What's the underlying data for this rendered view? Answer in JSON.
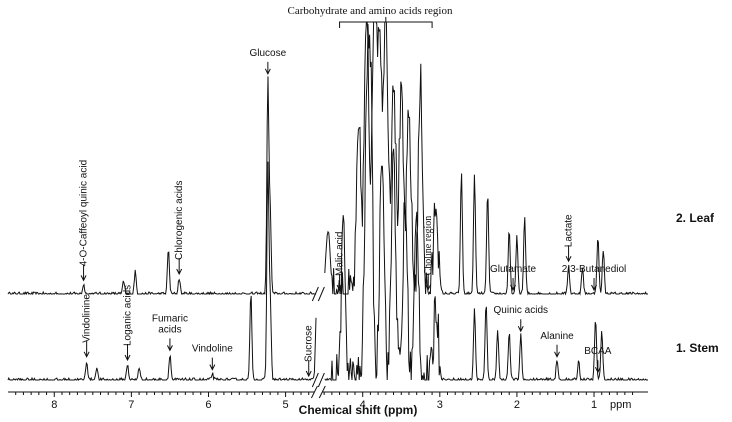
{
  "chart_data": {
    "type": "line",
    "title": "",
    "xlabel": "Chemical shift (ppm)",
    "x_unit": "ppm",
    "xlim": [
      8.6,
      0.3
    ],
    "x_reversed": true,
    "ticks": [
      8,
      7,
      6,
      5,
      4,
      3,
      2,
      1
    ],
    "region_label": "Carbohydrate and amino acids region",
    "series": [
      {
        "name": "2. Leaf",
        "peaks": [
          {
            "x": 7.62,
            "h": 0.3
          },
          {
            "x": 7.1,
            "h": 0.4
          },
          {
            "x": 6.95,
            "h": 0.7
          },
          {
            "x": 6.52,
            "h": 1.4
          },
          {
            "x": 6.38,
            "h": 0.5
          },
          {
            "x": 5.23,
            "h": 6.6
          },
          {
            "x": 5.2,
            "h": 2.5
          },
          {
            "x": 4.45,
            "h": 2.0
          },
          {
            "x": 4.05,
            "h": 5.0
          },
          {
            "x": 3.95,
            "h": 9.0
          },
          {
            "x": 3.85,
            "h": 9.5
          },
          {
            "x": 3.78,
            "h": 8.0
          },
          {
            "x": 3.7,
            "h": 9.2
          },
          {
            "x": 3.6,
            "h": 7.0
          },
          {
            "x": 3.5,
            "h": 6.0
          },
          {
            "x": 3.4,
            "h": 5.5
          },
          {
            "x": 3.25,
            "h": 6.5
          },
          {
            "x": 3.05,
            "h": 3.0
          },
          {
            "x": 2.72,
            "h": 3.8
          },
          {
            "x": 2.55,
            "h": 3.7
          },
          {
            "x": 2.38,
            "h": 3.2
          },
          {
            "x": 2.1,
            "h": 2.0
          },
          {
            "x": 2.0,
            "h": 1.8
          },
          {
            "x": 1.9,
            "h": 2.4
          },
          {
            "x": 1.33,
            "h": 0.9
          },
          {
            "x": 1.15,
            "h": 0.8
          },
          {
            "x": 0.95,
            "h": 1.8
          },
          {
            "x": 0.88,
            "h": 1.4
          }
        ],
        "annotations": [
          {
            "text": "4-O-Caffeoyl quinic acid",
            "x": 7.62,
            "vertical": true,
            "serif": false
          },
          {
            "text": "Chlorogenic acids",
            "x": 6.38,
            "vertical": true,
            "serif": false
          },
          {
            "text": "Glucose",
            "x": 5.23,
            "vertical": false,
            "serif": false
          },
          {
            "text": "Malic acid",
            "x": 4.3,
            "vertical": true,
            "serif": false
          },
          {
            "text": "Choline region",
            "x": 3.15,
            "vertical": true,
            "serif": true
          },
          {
            "text": "Glutamate",
            "x": 2.05,
            "vertical": false,
            "serif": false
          },
          {
            "text": "Lactate",
            "x": 1.33,
            "vertical": true,
            "serif": false
          },
          {
            "text": "2,3-Butanediol",
            "x": 1.0,
            "vertical": false,
            "serif": false
          }
        ]
      },
      {
        "name": "1. Stem",
        "peaks": [
          {
            "x": 7.58,
            "h": 0.6
          },
          {
            "x": 7.45,
            "h": 0.4
          },
          {
            "x": 7.05,
            "h": 0.5
          },
          {
            "x": 6.9,
            "h": 0.4
          },
          {
            "x": 6.5,
            "h": 0.8
          },
          {
            "x": 5.95,
            "h": 0.2
          },
          {
            "x": 5.45,
            "h": 2.7
          },
          {
            "x": 5.23,
            "h": 6.7
          },
          {
            "x": 5.2,
            "h": 2.5
          },
          {
            "x": 4.6,
            "h": 2.2
          },
          {
            "x": 4.25,
            "h": 4.5
          },
          {
            "x": 3.95,
            "h": 7.0
          },
          {
            "x": 3.9,
            "h": 9.0
          },
          {
            "x": 3.75,
            "h": 7.5
          },
          {
            "x": 3.6,
            "h": 7.2
          },
          {
            "x": 3.45,
            "h": 5.5
          },
          {
            "x": 3.3,
            "h": 5.0
          },
          {
            "x": 3.05,
            "h": 2.5
          },
          {
            "x": 2.55,
            "h": 2.2
          },
          {
            "x": 2.4,
            "h": 2.4
          },
          {
            "x": 2.25,
            "h": 1.6
          },
          {
            "x": 2.1,
            "h": 1.5
          },
          {
            "x": 1.95,
            "h": 1.4
          },
          {
            "x": 1.48,
            "h": 0.6
          },
          {
            "x": 1.2,
            "h": 0.6
          },
          {
            "x": 0.98,
            "h": 1.9
          },
          {
            "x": 0.9,
            "h": 1.5
          }
        ],
        "annotations": [
          {
            "text": "Vindolinine",
            "x": 7.58,
            "vertical": true,
            "serif": false
          },
          {
            "text": "Loganic acids",
            "x": 7.05,
            "vertical": true,
            "serif": false
          },
          {
            "text": "Fumaric\nacids",
            "x": 6.5,
            "vertical": false,
            "serif": false
          },
          {
            "text": "Vindoline",
            "x": 5.95,
            "vertical": false,
            "serif": false
          },
          {
            "text": "Sucrose",
            "x": 4.7,
            "vertical": true,
            "serif": false
          },
          {
            "text": "Quinic acids",
            "x": 1.95,
            "vertical": false,
            "serif": false
          },
          {
            "text": "Alanine",
            "x": 1.48,
            "vertical": false,
            "serif": false
          },
          {
            "text": "BCAA",
            "x": 0.95,
            "vertical": false,
            "serif": false
          }
        ]
      }
    ]
  }
}
